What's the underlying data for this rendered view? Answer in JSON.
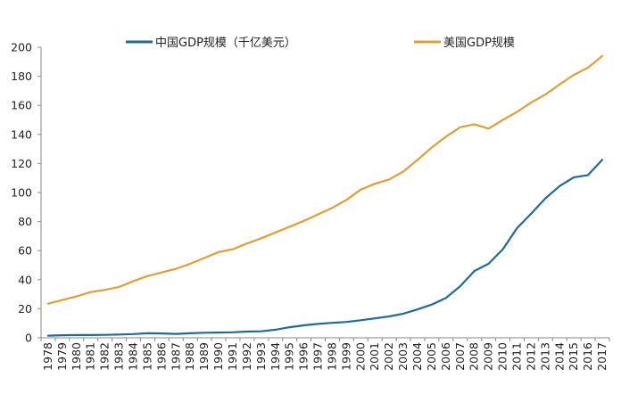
{
  "chart_data": {
    "type": "line",
    "ylim": [
      0,
      200
    ],
    "yticks": [
      0,
      20,
      40,
      60,
      80,
      100,
      120,
      140,
      160,
      180,
      200
    ],
    "grid": false,
    "legend_position": "top",
    "x": [
      "1978",
      "1979",
      "1980",
      "1981",
      "1982",
      "1983",
      "1984",
      "1985",
      "1986",
      "1987",
      "1988",
      "1989",
      "1990",
      "1991",
      "1992",
      "1993",
      "1994",
      "1995",
      "1996",
      "1997",
      "1998",
      "1999",
      "2000",
      "2001",
      "2002",
      "2003",
      "2004",
      "2005",
      "2006",
      "2007",
      "2008",
      "2009",
      "2010",
      "2011",
      "2012",
      "2013",
      "2014",
      "2015",
      "2016",
      "2017"
    ],
    "series": [
      {
        "name": "中国GDP规模（千亿美元）",
        "color": "#1f6b96",
        "values": [
          1.5,
          1.8,
          1.9,
          1.9,
          2.0,
          2.3,
          2.6,
          3.1,
          3.0,
          2.7,
          3.1,
          3.5,
          3.6,
          3.8,
          4.3,
          4.5,
          5.6,
          7.3,
          8.6,
          9.6,
          10.3,
          10.9,
          12.1,
          13.4,
          14.7,
          16.6,
          19.6,
          22.9,
          27.5,
          35.5,
          46.0,
          51.0,
          61.0,
          75.5,
          85.5,
          96.0,
          104.5,
          110.5,
          112.0,
          122.5
        ]
      },
      {
        "name": "美国GDP规模",
        "color": "#e0a030",
        "values": [
          23.5,
          26.0,
          28.5,
          31.5,
          33.0,
          35.0,
          39.0,
          42.5,
          45.0,
          47.5,
          51.0,
          55.0,
          59.0,
          61.0,
          65.0,
          68.5,
          72.5,
          76.5,
          80.5,
          85.0,
          89.5,
          95.0,
          102.0,
          106.0,
          109.0,
          114.5,
          122.5,
          131.0,
          138.5,
          145.0,
          147.0,
          144.0,
          150.0,
          155.5,
          162.0,
          167.5,
          174.5,
          181.0,
          186.0,
          194.0
        ]
      }
    ]
  }
}
